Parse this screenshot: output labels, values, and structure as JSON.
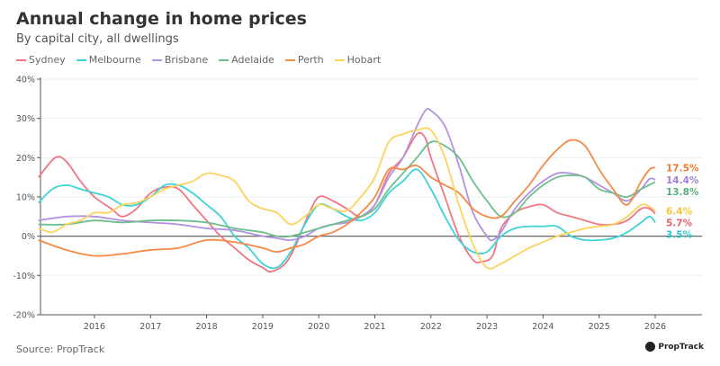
{
  "chart_data": {
    "type": "line",
    "title": "Annual change in home prices",
    "subtitle": "By capital city, all dwellings",
    "xlabel": "",
    "ylabel": "",
    "xlim": [
      2015.0,
      2026.8
    ],
    "ylim": [
      -20,
      40
    ],
    "x_ticks": [
      "2016",
      "2017",
      "2018",
      "2019",
      "2020",
      "2021",
      "2022",
      "2023",
      "2024",
      "2025",
      "2026"
    ],
    "y_ticks": [
      "40%",
      "30%",
      "20%",
      "10%",
      "0%",
      "-10%",
      "-20%"
    ],
    "y_tick_values": [
      40,
      30,
      20,
      10,
      0,
      -10,
      -20
    ],
    "grid": "horizontal",
    "legend_position": "top-left",
    "source": "Source: PropTrack",
    "logo_text": "PropTrack",
    "series": [
      {
        "name": "Sydney",
        "color": "#f07682",
        "label_color": "#ee5f6d",
        "end_label": "5.7%",
        "x": [
          2015.0,
          2015.3,
          2015.5,
          2015.75,
          2016.0,
          2016.3,
          2016.5,
          2016.75,
          2017.0,
          2017.25,
          2017.5,
          2017.75,
          2018.0,
          2018.25,
          2018.5,
          2018.75,
          2019.0,
          2019.15,
          2019.4,
          2019.6,
          2019.8,
          2020.0,
          2020.25,
          2020.5,
          2020.75,
          2021.0,
          2021.25,
          2021.5,
          2021.75,
          2021.9,
          2022.0,
          2022.25,
          2022.5,
          2022.75,
          2022.9,
          2023.1,
          2023.25,
          2023.5,
          2023.75,
          2024.0,
          2024.25,
          2024.5,
          2024.75,
          2025.0,
          2025.25,
          2025.5,
          2025.75,
          2025.9,
          2026.0
        ],
        "y": [
          15,
          20,
          19,
          14,
          10,
          7,
          5,
          7,
          11,
          12.5,
          12,
          8,
          4,
          0,
          -3,
          -6,
          -8,
          -9,
          -7,
          -2,
          5,
          10,
          9,
          7,
          5,
          8,
          16,
          20,
          26,
          25,
          20,
          10,
          0,
          -6,
          -6.5,
          -5,
          2,
          6,
          7.5,
          8,
          6,
          5,
          4,
          3,
          3,
          4,
          7,
          7,
          5.7
        ]
      },
      {
        "name": "Melbourne",
        "color": "#3ed3d8",
        "label_color": "#2cc9cf",
        "end_label": "3.5%",
        "x": [
          2015.0,
          2015.25,
          2015.5,
          2015.75,
          2016.0,
          2016.25,
          2016.5,
          2016.75,
          2017.0,
          2017.25,
          2017.5,
          2017.75,
          2018.0,
          2018.25,
          2018.5,
          2018.75,
          2019.0,
          2019.25,
          2019.5,
          2019.75,
          2020.0,
          2020.25,
          2020.5,
          2020.75,
          2021.0,
          2021.25,
          2021.5,
          2021.75,
          2022.0,
          2022.25,
          2022.5,
          2022.75,
          2023.0,
          2023.25,
          2023.5,
          2023.75,
          2024.0,
          2024.25,
          2024.5,
          2024.75,
          2025.0,
          2025.25,
          2025.5,
          2025.75,
          2025.9,
          2026.0
        ],
        "y": [
          8.5,
          12,
          13,
          12,
          11,
          10,
          8,
          8,
          10,
          13,
          13,
          11,
          8,
          5,
          0,
          -3,
          -7,
          -8,
          -4,
          3,
          8,
          7,
          5,
          4,
          6,
          11,
          14,
          17,
          12,
          5,
          -1,
          -4,
          -4,
          0,
          2,
          2.5,
          2.5,
          2.5,
          0,
          -1,
          -1,
          -0.5,
          1,
          3.5,
          5,
          3.5
        ]
      },
      {
        "name": "Brisbane",
        "color": "#b392e0",
        "label_color": "#a27fd8",
        "end_label": "14.4%",
        "x": [
          2015.0,
          2015.5,
          2016.0,
          2016.5,
          2017.0,
          2017.5,
          2018.0,
          2018.5,
          2019.0,
          2019.25,
          2019.5,
          2019.75,
          2020.0,
          2020.25,
          2020.5,
          2020.75,
          2021.0,
          2021.25,
          2021.5,
          2021.75,
          2021.9,
          2022.0,
          2022.25,
          2022.5,
          2022.75,
          2023.0,
          2023.1,
          2023.25,
          2023.5,
          2023.75,
          2024.0,
          2024.25,
          2024.5,
          2024.75,
          2025.0,
          2025.25,
          2025.5,
          2025.75,
          2025.9,
          2026.0
        ],
        "y": [
          4,
          5,
          5,
          4,
          3.5,
          3,
          2,
          1.5,
          0,
          -0.5,
          -1,
          0,
          2,
          3,
          3.5,
          5,
          8,
          15,
          20,
          28,
          32,
          32,
          28,
          18,
          6,
          0,
          -1,
          1,
          7,
          11,
          14,
          16,
          16,
          15,
          13,
          11,
          9,
          12,
          14.6,
          14.4
        ]
      },
      {
        "name": "Adelaide",
        "color": "#6dbf8d",
        "label_color": "#55b07a",
        "end_label": "13.8%",
        "x": [
          2015.0,
          2015.5,
          2016.0,
          2016.5,
          2017.0,
          2017.5,
          2018.0,
          2018.5,
          2019.0,
          2019.25,
          2019.5,
          2020.0,
          2020.5,
          2020.75,
          2021.0,
          2021.25,
          2021.5,
          2021.75,
          2022.0,
          2022.25,
          2022.5,
          2022.75,
          2023.0,
          2023.25,
          2023.5,
          2023.75,
          2024.0,
          2024.25,
          2024.5,
          2024.75,
          2025.0,
          2025.25,
          2025.5,
          2025.75,
          2026.0
        ],
        "y": [
          3,
          3,
          4,
          3.5,
          4,
          4,
          3.5,
          2,
          1,
          0,
          0,
          2,
          4,
          5,
          7,
          12,
          16,
          20,
          24,
          23,
          20,
          14,
          9,
          5,
          6,
          10,
          13,
          15,
          15.5,
          15,
          12,
          11,
          10,
          12,
          13.8
        ]
      },
      {
        "name": "Perth",
        "color": "#f58a45",
        "label_color": "#f27a2f",
        "end_label": "17.5%",
        "x": [
          2015.0,
          2015.5,
          2016.0,
          2016.5,
          2017.0,
          2017.5,
          2018.0,
          2018.5,
          2019.0,
          2019.25,
          2019.5,
          2019.75,
          2020.0,
          2020.25,
          2020.5,
          2020.75,
          2021.0,
          2021.25,
          2021.5,
          2021.75,
          2022.0,
          2022.25,
          2022.5,
          2022.75,
          2023.0,
          2023.25,
          2023.5,
          2023.75,
          2024.0,
          2024.25,
          2024.5,
          2024.75,
          2025.0,
          2025.25,
          2025.5,
          2025.75,
          2025.9,
          2026.0
        ],
        "y": [
          -1,
          -3.5,
          -5,
          -4.5,
          -3.5,
          -3,
          -1,
          -1.5,
          -3,
          -4,
          -3,
          -2,
          0,
          1,
          3,
          6,
          10,
          17,
          17,
          18,
          15,
          13,
          11,
          7,
          5,
          5,
          9,
          13,
          18,
          22,
          24.5,
          23,
          17,
          12,
          8,
          14,
          17,
          17.5
        ]
      },
      {
        "name": "Hobart",
        "color": "#fdd35d",
        "label_color": "#f9c73a",
        "end_label": "6.4%",
        "x": [
          2015.0,
          2015.25,
          2015.5,
          2015.75,
          2016.0,
          2016.25,
          2016.5,
          2016.75,
          2017.0,
          2017.25,
          2017.5,
          2017.75,
          2018.0,
          2018.25,
          2018.5,
          2018.75,
          2019.0,
          2019.25,
          2019.5,
          2019.75,
          2020.0,
          2020.25,
          2020.5,
          2020.75,
          2021.0,
          2021.25,
          2021.5,
          2021.75,
          2022.0,
          2022.25,
          2022.5,
          2022.75,
          2023.0,
          2023.25,
          2023.5,
          2023.75,
          2024.0,
          2024.25,
          2024.5,
          2024.75,
          2025.0,
          2025.25,
          2025.5,
          2025.75,
          2025.9,
          2026.0
        ],
        "y": [
          2,
          1,
          3,
          4,
          6,
          6,
          8,
          8.5,
          10,
          12,
          13,
          14,
          16,
          15.5,
          14,
          9,
          7,
          6,
          3,
          5,
          8,
          7,
          6.5,
          10,
          15,
          24,
          26,
          27,
          27,
          20,
          8,
          -2,
          -8,
          -7,
          -5,
          -3,
          -1.5,
          0,
          1,
          2,
          2.5,
          3,
          5,
          8,
          7.5,
          6.4
        ]
      }
    ]
  }
}
